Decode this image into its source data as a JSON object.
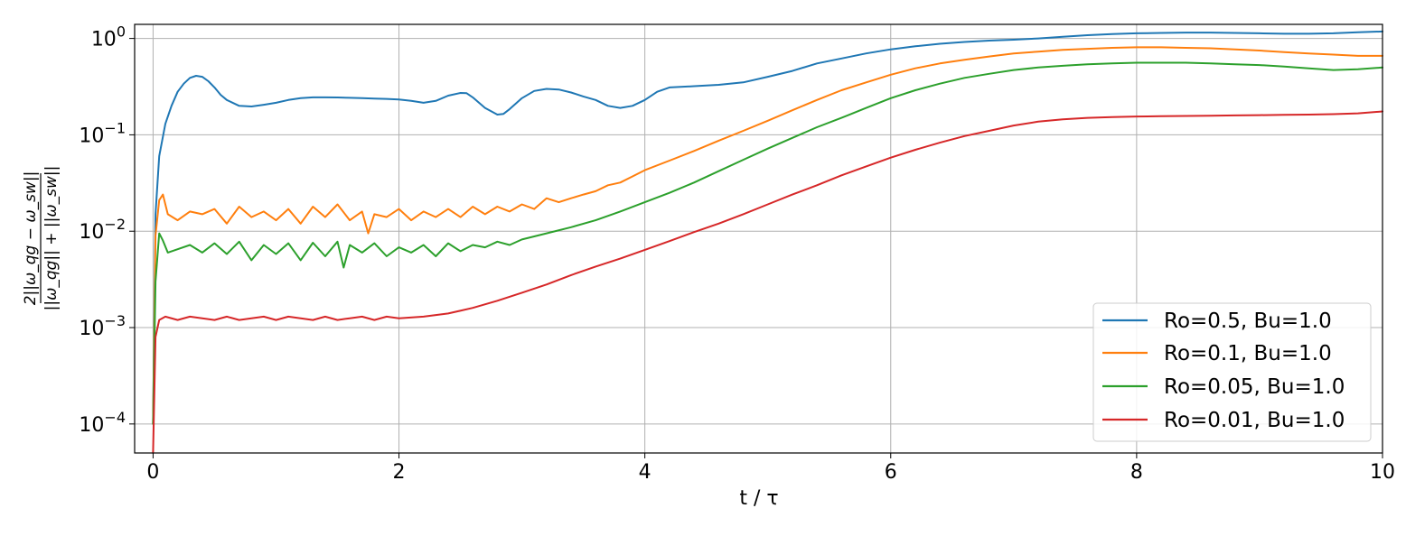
{
  "chart_data": {
    "type": "line",
    "xlabel": "t / τ",
    "ylabel": "2||ω_qg − ω_sw|| / (||ω_qg|| + ||ω_sw||)",
    "ylabel_parts": {
      "numerator": "2||ω_qg − ω_sw||",
      "denominator": "||ω_qg|| + ||ω_sw||"
    },
    "xlim": [
      -0.15,
      10
    ],
    "ylim": [
      5e-05,
      1.4
    ],
    "yscale": "log",
    "grid": true,
    "legend_position": "lower-right",
    "x_ticks": [
      {
        "value": 0,
        "label": "0"
      },
      {
        "value": 2,
        "label": "2"
      },
      {
        "value": 4,
        "label": "4"
      },
      {
        "value": 6,
        "label": "6"
      },
      {
        "value": 8,
        "label": "8"
      },
      {
        "value": 10,
        "label": "10"
      }
    ],
    "y_ticks": [
      {
        "value": 0.0001,
        "base": "10",
        "exp": "−4"
      },
      {
        "value": 0.001,
        "base": "10",
        "exp": "−3"
      },
      {
        "value": 0.01,
        "base": "10",
        "exp": "−2"
      },
      {
        "value": 0.1,
        "base": "10",
        "exp": "−1"
      },
      {
        "value": 1,
        "base": "10",
        "exp": "0"
      }
    ],
    "series": [
      {
        "name": "Ro=0.5, Bu=1.0",
        "color": "#1f77b4",
        "x": [
          0,
          0.02,
          0.05,
          0.1,
          0.15,
          0.2,
          0.25,
          0.3,
          0.35,
          0.4,
          0.45,
          0.5,
          0.55,
          0.6,
          0.7,
          0.8,
          0.9,
          1.0,
          1.1,
          1.2,
          1.3,
          1.4,
          1.5,
          1.6,
          1.7,
          1.8,
          1.9,
          2.0,
          2.1,
          2.2,
          2.3,
          2.4,
          2.5,
          2.55,
          2.6,
          2.7,
          2.8,
          2.85,
          2.9,
          3.0,
          3.1,
          3.2,
          3.3,
          3.4,
          3.5,
          3.6,
          3.7,
          3.8,
          3.9,
          4.0,
          4.1,
          4.2,
          4.4,
          4.6,
          4.8,
          5.0,
          5.2,
          5.4,
          5.6,
          5.8,
          6.0,
          6.2,
          6.4,
          6.6,
          6.8,
          7.0,
          7.2,
          7.4,
          7.6,
          7.8,
          8.0,
          8.2,
          8.4,
          8.6,
          8.8,
          9.0,
          9.2,
          9.4,
          9.6,
          9.8,
          10.0
        ],
        "y": [
          0.0001,
          0.015,
          0.06,
          0.13,
          0.2,
          0.28,
          0.34,
          0.39,
          0.41,
          0.4,
          0.36,
          0.31,
          0.26,
          0.23,
          0.2,
          0.197,
          0.205,
          0.215,
          0.23,
          0.24,
          0.245,
          0.245,
          0.244,
          0.242,
          0.24,
          0.238,
          0.236,
          0.233,
          0.225,
          0.215,
          0.225,
          0.255,
          0.272,
          0.27,
          0.245,
          0.19,
          0.162,
          0.165,
          0.185,
          0.24,
          0.285,
          0.3,
          0.295,
          0.275,
          0.25,
          0.23,
          0.2,
          0.19,
          0.2,
          0.23,
          0.28,
          0.31,
          0.32,
          0.33,
          0.35,
          0.4,
          0.46,
          0.55,
          0.62,
          0.7,
          0.77,
          0.83,
          0.88,
          0.92,
          0.95,
          0.97,
          1.0,
          1.04,
          1.08,
          1.11,
          1.13,
          1.14,
          1.15,
          1.15,
          1.14,
          1.13,
          1.12,
          1.12,
          1.13,
          1.16,
          1.18
        ]
      },
      {
        "name": "Ro=0.1, Bu=1.0",
        "color": "#ff7f0e",
        "x": [
          0,
          0.02,
          0.05,
          0.08,
          0.12,
          0.2,
          0.3,
          0.4,
          0.5,
          0.6,
          0.7,
          0.8,
          0.9,
          1.0,
          1.1,
          1.2,
          1.3,
          1.4,
          1.5,
          1.6,
          1.7,
          1.75,
          1.8,
          1.9,
          2.0,
          2.1,
          2.2,
          2.3,
          2.4,
          2.5,
          2.6,
          2.7,
          2.8,
          2.9,
          3.0,
          3.1,
          3.2,
          3.3,
          3.4,
          3.5,
          3.6,
          3.7,
          3.8,
          3.9,
          4.0,
          4.2,
          4.4,
          4.6,
          4.8,
          5.0,
          5.2,
          5.4,
          5.6,
          5.8,
          6.0,
          6.2,
          6.4,
          6.6,
          6.8,
          7.0,
          7.2,
          7.4,
          7.6,
          7.8,
          8.0,
          8.2,
          8.4,
          8.6,
          8.8,
          9.0,
          9.2,
          9.4,
          9.6,
          9.8,
          10.0
        ],
        "y": [
          0.0001,
          0.009,
          0.021,
          0.024,
          0.015,
          0.013,
          0.016,
          0.015,
          0.017,
          0.012,
          0.018,
          0.014,
          0.016,
          0.013,
          0.017,
          0.012,
          0.018,
          0.014,
          0.019,
          0.013,
          0.016,
          0.0095,
          0.015,
          0.014,
          0.017,
          0.013,
          0.016,
          0.014,
          0.017,
          0.014,
          0.018,
          0.015,
          0.018,
          0.016,
          0.019,
          0.017,
          0.022,
          0.02,
          0.022,
          0.024,
          0.026,
          0.03,
          0.032,
          0.037,
          0.043,
          0.054,
          0.068,
          0.087,
          0.11,
          0.14,
          0.18,
          0.23,
          0.29,
          0.35,
          0.42,
          0.49,
          0.55,
          0.6,
          0.65,
          0.7,
          0.73,
          0.76,
          0.78,
          0.8,
          0.81,
          0.81,
          0.8,
          0.79,
          0.77,
          0.75,
          0.72,
          0.7,
          0.68,
          0.66,
          0.66
        ]
      },
      {
        "name": "Ro=0.05, Bu=1.0",
        "color": "#2ca02c",
        "x": [
          0,
          0.02,
          0.05,
          0.08,
          0.12,
          0.2,
          0.3,
          0.4,
          0.5,
          0.6,
          0.7,
          0.8,
          0.9,
          1.0,
          1.1,
          1.2,
          1.3,
          1.4,
          1.5,
          1.55,
          1.6,
          1.7,
          1.8,
          1.9,
          2.0,
          2.1,
          2.2,
          2.3,
          2.4,
          2.5,
          2.6,
          2.7,
          2.8,
          2.9,
          3.0,
          3.2,
          3.4,
          3.6,
          3.8,
          4.0,
          4.2,
          4.4,
          4.6,
          4.8,
          5.0,
          5.2,
          5.4,
          5.6,
          5.8,
          6.0,
          6.2,
          6.4,
          6.6,
          6.8,
          7.0,
          7.2,
          7.4,
          7.6,
          7.8,
          8.0,
          8.2,
          8.4,
          8.6,
          8.8,
          9.0,
          9.2,
          9.4,
          9.6,
          9.8,
          10.0
        ],
        "y": [
          0.0001,
          0.003,
          0.0095,
          0.008,
          0.006,
          0.0065,
          0.0072,
          0.006,
          0.0075,
          0.0058,
          0.0078,
          0.005,
          0.0072,
          0.0058,
          0.0075,
          0.005,
          0.0076,
          0.0055,
          0.0078,
          0.0042,
          0.0072,
          0.006,
          0.0075,
          0.0055,
          0.0068,
          0.006,
          0.0072,
          0.0055,
          0.0075,
          0.0062,
          0.0072,
          0.0068,
          0.0078,
          0.0072,
          0.0082,
          0.0095,
          0.011,
          0.013,
          0.016,
          0.02,
          0.025,
          0.032,
          0.042,
          0.055,
          0.072,
          0.093,
          0.12,
          0.15,
          0.19,
          0.24,
          0.29,
          0.34,
          0.39,
          0.43,
          0.47,
          0.5,
          0.52,
          0.54,
          0.55,
          0.56,
          0.56,
          0.56,
          0.55,
          0.54,
          0.53,
          0.51,
          0.49,
          0.47,
          0.48,
          0.5
        ]
      },
      {
        "name": "Ro=0.01, Bu=1.0",
        "color": "#d62728",
        "x": [
          0,
          0.02,
          0.05,
          0.1,
          0.2,
          0.3,
          0.4,
          0.5,
          0.6,
          0.7,
          0.8,
          0.9,
          1.0,
          1.1,
          1.2,
          1.3,
          1.4,
          1.5,
          1.6,
          1.7,
          1.8,
          1.9,
          2.0,
          2.2,
          2.4,
          2.6,
          2.8,
          3.0,
          3.2,
          3.4,
          3.6,
          3.8,
          4.0,
          4.2,
          4.4,
          4.6,
          4.8,
          5.0,
          5.2,
          5.4,
          5.6,
          5.8,
          6.0,
          6.2,
          6.4,
          6.6,
          6.8,
          7.0,
          7.2,
          7.4,
          7.6,
          7.8,
          8.0,
          8.2,
          8.4,
          8.6,
          8.8,
          9.0,
          9.2,
          9.4,
          9.6,
          9.8,
          10.0
        ],
        "y": [
          5e-05,
          0.0008,
          0.0012,
          0.0013,
          0.0012,
          0.0013,
          0.00125,
          0.0012,
          0.0013,
          0.0012,
          0.00125,
          0.0013,
          0.0012,
          0.0013,
          0.00125,
          0.0012,
          0.0013,
          0.0012,
          0.00125,
          0.0013,
          0.0012,
          0.0013,
          0.00125,
          0.0013,
          0.0014,
          0.0016,
          0.0019,
          0.0023,
          0.0028,
          0.0035,
          0.0043,
          0.0052,
          0.0064,
          0.0079,
          0.0098,
          0.012,
          0.015,
          0.019,
          0.024,
          0.03,
          0.038,
          0.047,
          0.058,
          0.07,
          0.083,
          0.097,
          0.11,
          0.125,
          0.137,
          0.145,
          0.15,
          0.153,
          0.155,
          0.156,
          0.157,
          0.158,
          0.159,
          0.16,
          0.161,
          0.162,
          0.164,
          0.167,
          0.175
        ]
      }
    ]
  }
}
